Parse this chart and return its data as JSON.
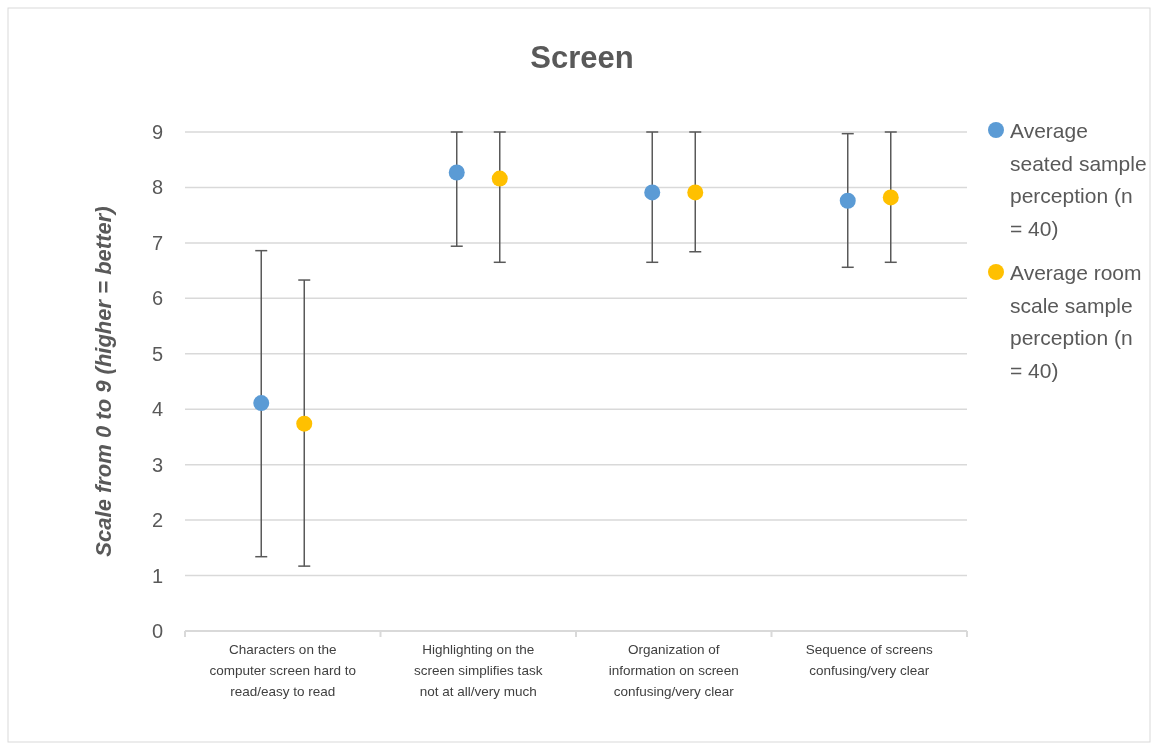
{
  "chart_data": {
    "type": "scatter",
    "title": "Screen",
    "ylabel": "Scale from 0 to 9 (higher = better)",
    "categories": [
      "Characters on the computer screen hard to read/easy to read",
      "Highlighting on the screen simplifies task not at all/very much",
      "Organization of information on screen confusing/very clear",
      "Sequence of screens confusing/very clear"
    ],
    "series": [
      {
        "name": "Average seated sample perception (n = 40)",
        "color": "#5b9bd5",
        "values": [
          4.11,
          8.27,
          7.91,
          7.76
        ],
        "errors": [
          [
            1.34,
            6.86
          ],
          [
            6.94,
            9
          ],
          [
            6.65,
            9
          ],
          [
            6.56,
            8.97
          ]
        ]
      },
      {
        "name": "Average room scale sample perception (n = 40)",
        "color": "#ffc000",
        "values": [
          3.74,
          8.16,
          7.91,
          7.82
        ],
        "errors": [
          [
            1.17,
            6.33
          ],
          [
            6.65,
            9
          ],
          [
            6.84,
            9
          ],
          [
            6.65,
            9
          ]
        ]
      }
    ],
    "ylim": [
      0,
      9
    ],
    "yticks": [
      0,
      1,
      2,
      3,
      4,
      5,
      6,
      7,
      8,
      9
    ],
    "grid": "y",
    "legend": "right",
    "marker": "circle"
  }
}
